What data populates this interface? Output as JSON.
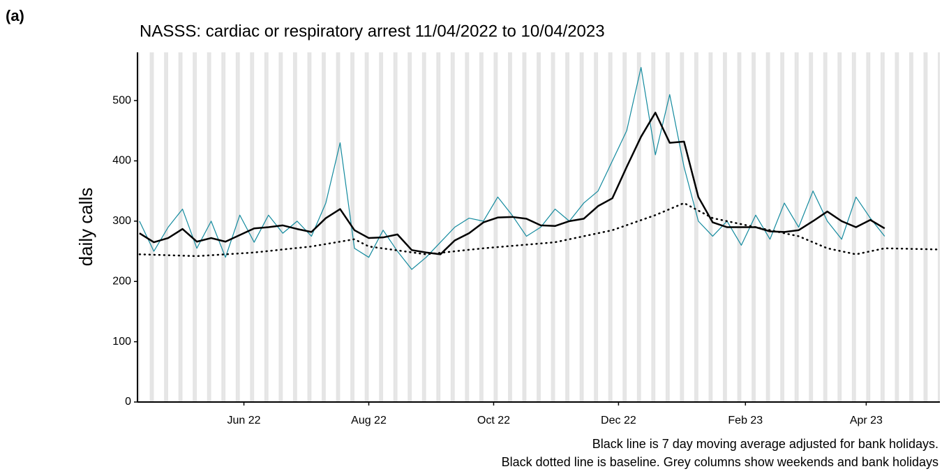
{
  "panel_label": "(a)",
  "chart_data": {
    "type": "line",
    "title": "NASSS: cardiac or respiratory arrest 11/04/2022 to 10/04/2023",
    "y_label": "daily calls",
    "notes": [
      "Black line is 7 day moving average adjusted for bank holidays.",
      "Black dotted line is baseline. Grey columns show weekends and bank holidays"
    ],
    "xlim": [
      "2022-04-10",
      "2023-05-07"
    ],
    "xticks": [
      {
        "value": "2022-06-01",
        "label": "Jun 22"
      },
      {
        "value": "2022-08-01",
        "label": "Aug 22"
      },
      {
        "value": "2022-10-01",
        "label": "Oct 22"
      },
      {
        "value": "2022-12-01",
        "label": "Dec 22"
      },
      {
        "value": "2023-02-01",
        "label": "Feb 23"
      },
      {
        "value": "2023-04-01",
        "label": "Apr 23"
      }
    ],
    "ylim": [
      0,
      580
    ],
    "yticks": [
      0,
      100,
      200,
      300,
      400,
      500
    ],
    "weekend_shading": true,
    "shade_color": "#e5e5e5",
    "series": [
      {
        "name": "daily calls",
        "color": "#138a9e",
        "style": "solid",
        "width": 1.2,
        "x": [
          "2022-04-11",
          "2022-04-18",
          "2022-04-25",
          "2022-05-02",
          "2022-05-09",
          "2022-05-16",
          "2022-05-23",
          "2022-05-30",
          "2022-06-06",
          "2022-06-13",
          "2022-06-20",
          "2022-06-27",
          "2022-07-04",
          "2022-07-11",
          "2022-07-18",
          "2022-07-25",
          "2022-08-01",
          "2022-08-08",
          "2022-08-15",
          "2022-08-22",
          "2022-08-29",
          "2022-09-05",
          "2022-09-12",
          "2022-09-19",
          "2022-09-26",
          "2022-10-03",
          "2022-10-10",
          "2022-10-17",
          "2022-10-24",
          "2022-10-31",
          "2022-11-07",
          "2022-11-14",
          "2022-11-21",
          "2022-11-28",
          "2022-12-05",
          "2022-12-12",
          "2022-12-19",
          "2022-12-26",
          "2023-01-02",
          "2023-01-09",
          "2023-01-16",
          "2023-01-23",
          "2023-01-30",
          "2023-02-06",
          "2023-02-13",
          "2023-02-20",
          "2023-02-27",
          "2023-03-06",
          "2023-03-13",
          "2023-03-20",
          "2023-03-27",
          "2023-04-03",
          "2023-04-10"
        ],
        "values": [
          300,
          250,
          290,
          320,
          255,
          300,
          240,
          310,
          265,
          310,
          280,
          300,
          275,
          330,
          430,
          255,
          240,
          285,
          250,
          220,
          240,
          265,
          290,
          305,
          300,
          340,
          310,
          275,
          290,
          320,
          300,
          330,
          350,
          400,
          450,
          555,
          410,
          510,
          390,
          300,
          275,
          300,
          260,
          310,
          270,
          330,
          290,
          350,
          300,
          270,
          340,
          305,
          275
        ]
      },
      {
        "name": "7 day moving average",
        "color": "#000000",
        "style": "solid",
        "width": 2.5,
        "x": [
          "2022-04-11",
          "2022-04-18",
          "2022-04-25",
          "2022-05-02",
          "2022-05-09",
          "2022-05-16",
          "2022-05-23",
          "2022-05-30",
          "2022-06-06",
          "2022-06-13",
          "2022-06-20",
          "2022-06-27",
          "2022-07-04",
          "2022-07-11",
          "2022-07-18",
          "2022-07-25",
          "2022-08-01",
          "2022-08-08",
          "2022-08-15",
          "2022-08-22",
          "2022-08-29",
          "2022-09-05",
          "2022-09-12",
          "2022-09-19",
          "2022-09-26",
          "2022-10-03",
          "2022-10-10",
          "2022-10-17",
          "2022-10-24",
          "2022-10-31",
          "2022-11-07",
          "2022-11-14",
          "2022-11-21",
          "2022-11-28",
          "2022-12-05",
          "2022-12-12",
          "2022-12-19",
          "2022-12-26",
          "2023-01-02",
          "2023-01-09",
          "2023-01-16",
          "2023-01-23",
          "2023-01-30",
          "2023-02-06",
          "2023-02-13",
          "2023-02-20",
          "2023-02-27",
          "2023-03-06",
          "2023-03-13",
          "2023-03-20",
          "2023-03-27",
          "2023-04-03",
          "2023-04-10"
        ],
        "values": [
          280,
          265,
          272,
          287,
          266,
          272,
          266,
          277,
          288,
          290,
          293,
          287,
          282,
          305,
          320,
          285,
          272,
          273,
          278,
          252,
          248,
          245,
          268,
          280,
          298,
          306,
          307,
          304,
          293,
          292,
          300,
          304,
          325,
          338,
          390,
          440,
          480,
          430,
          432,
          340,
          298,
          290,
          290,
          290,
          283,
          282,
          285,
          300,
          316,
          300,
          290,
          302,
          288
        ]
      },
      {
        "name": "baseline",
        "color": "#000000",
        "style": "dotted",
        "width": 2.5,
        "x": [
          "2022-04-11",
          "2022-05-09",
          "2022-06-06",
          "2022-07-04",
          "2022-07-25",
          "2022-08-01",
          "2022-08-29",
          "2022-09-26",
          "2022-10-31",
          "2022-11-28",
          "2022-12-19",
          "2023-01-02",
          "2023-01-16",
          "2023-01-30",
          "2023-02-27",
          "2023-03-13",
          "2023-03-27",
          "2023-04-10",
          "2023-05-07"
        ],
        "values": [
          245,
          242,
          248,
          258,
          270,
          258,
          245,
          255,
          265,
          285,
          310,
          330,
          305,
          295,
          275,
          255,
          245,
          255,
          253
        ]
      }
    ]
  }
}
